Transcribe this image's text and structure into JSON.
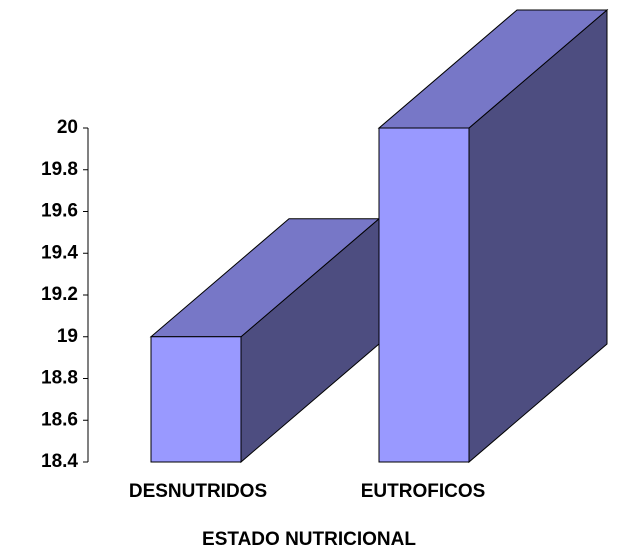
{
  "chart_data": {
    "type": "bar3d",
    "x_label": "ESTADO NUTRICIONAL",
    "categories": [
      "DESNUTRIDOS",
      "EUTROFICOS"
    ],
    "values": [
      19,
      20
    ],
    "color": "#9999ff",
    "ylim": [
      18.4,
      20
    ],
    "yticks": [
      18.4,
      18.6,
      18.8,
      19,
      19.2,
      19.4,
      19.6,
      19.8,
      20
    ]
  }
}
